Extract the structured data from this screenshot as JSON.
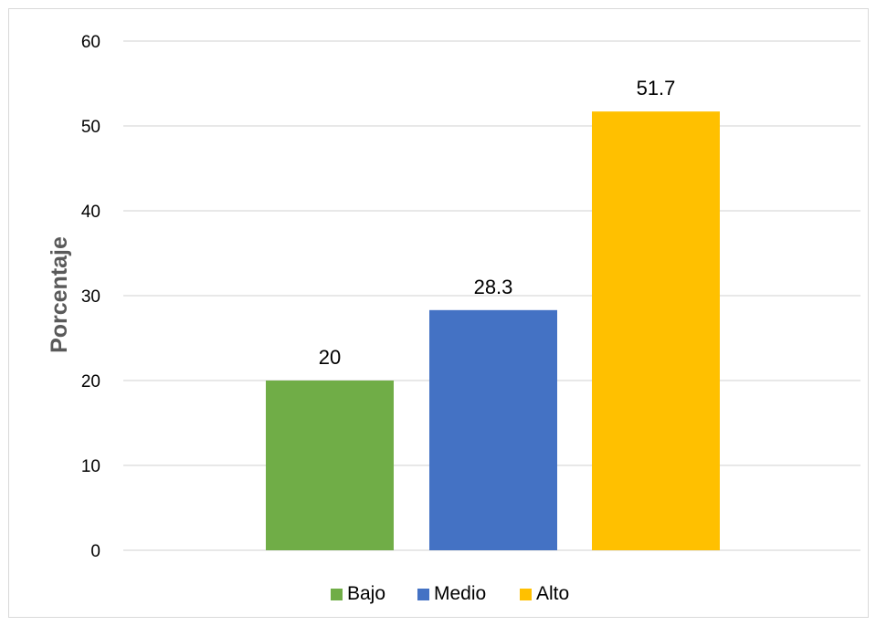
{
  "chart_data": {
    "type": "bar",
    "categories": [
      "Bajo",
      "Medio",
      "Alto"
    ],
    "values": [
      20,
      28.3,
      51.7
    ],
    "data_labels": [
      "20",
      "28.3",
      "51.7"
    ],
    "colors": [
      "#70ad47",
      "#4472c4",
      "#ffc000"
    ],
    "title": "",
    "xlabel": "",
    "ylabel": "Porcentaje",
    "ylim": [
      0,
      60
    ],
    "yticks": [
      "0",
      "10",
      "20",
      "30",
      "40",
      "50",
      "60"
    ],
    "grid": true,
    "legend": {
      "position": "bottom",
      "entries": [
        "Bajo",
        "Medio",
        "Alto"
      ]
    }
  }
}
